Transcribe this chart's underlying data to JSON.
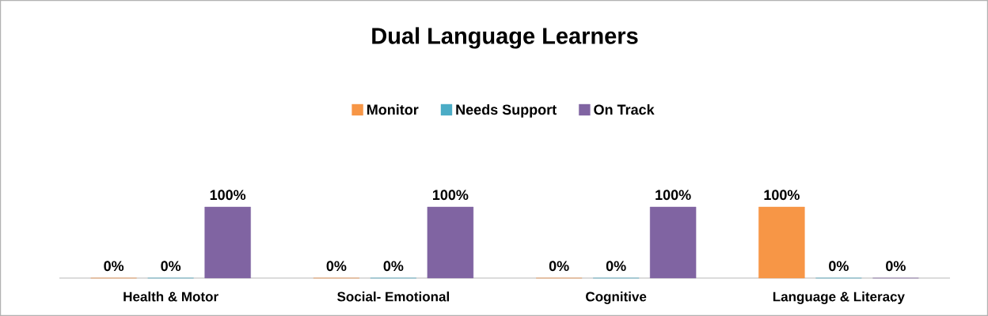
{
  "chart_data": {
    "type": "bar",
    "title": "Dual Language Learners",
    "categories": [
      "Health & Motor",
      "Social- Emotional",
      "Cognitive",
      "Language & Literacy"
    ],
    "series": [
      {
        "name": "Monitor",
        "color": "#f79646",
        "values": [
          0,
          0,
          0,
          100
        ],
        "value_labels": [
          "0%",
          "0%",
          "0%",
          "100%"
        ]
      },
      {
        "name": "Needs Support",
        "color": "#4bacc6",
        "values": [
          0,
          0,
          0,
          0
        ],
        "value_labels": [
          "0%",
          "0%",
          "0%",
          "0%"
        ]
      },
      {
        "name": "On Track",
        "color": "#8064a2",
        "values": [
          100,
          100,
          100,
          0
        ],
        "value_labels": [
          "100%",
          "100%",
          "100%",
          "0%"
        ]
      }
    ],
    "legend": "top"
  }
}
